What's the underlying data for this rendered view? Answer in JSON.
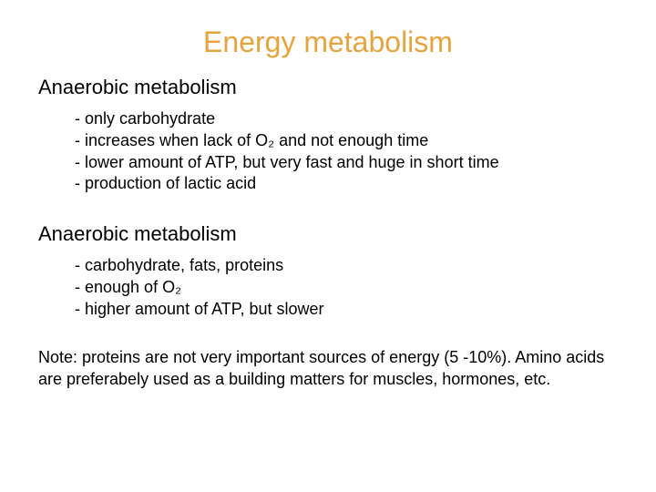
{
  "title": {
    "text": "Energy metabolism",
    "color": "#e8a33d"
  },
  "section1": {
    "heading": "Anaerobic metabolism",
    "bullets": [
      "- only carbohydrate",
      "- increases when lack of O₂ and not enough time",
      "- lower amount of ATP, but very fast and huge in short time",
      "- production of lactic acid"
    ]
  },
  "section2": {
    "heading": "Anaerobic metabolism",
    "bullets": [
      "- carbohydrate, fats, proteins",
      "- enough of O₂",
      "- higher amount of ATP, but slower"
    ]
  },
  "note": "Note: proteins are not very important sources of energy (5 -10%). Amino acids are preferabely used as a building matters for muscles, hormones, etc.",
  "colors": {
    "text": "#000000",
    "background": "#ffffff"
  },
  "font": {
    "family": "Arial",
    "title_size": 32,
    "subhead_size": 22,
    "body_size": 18
  }
}
